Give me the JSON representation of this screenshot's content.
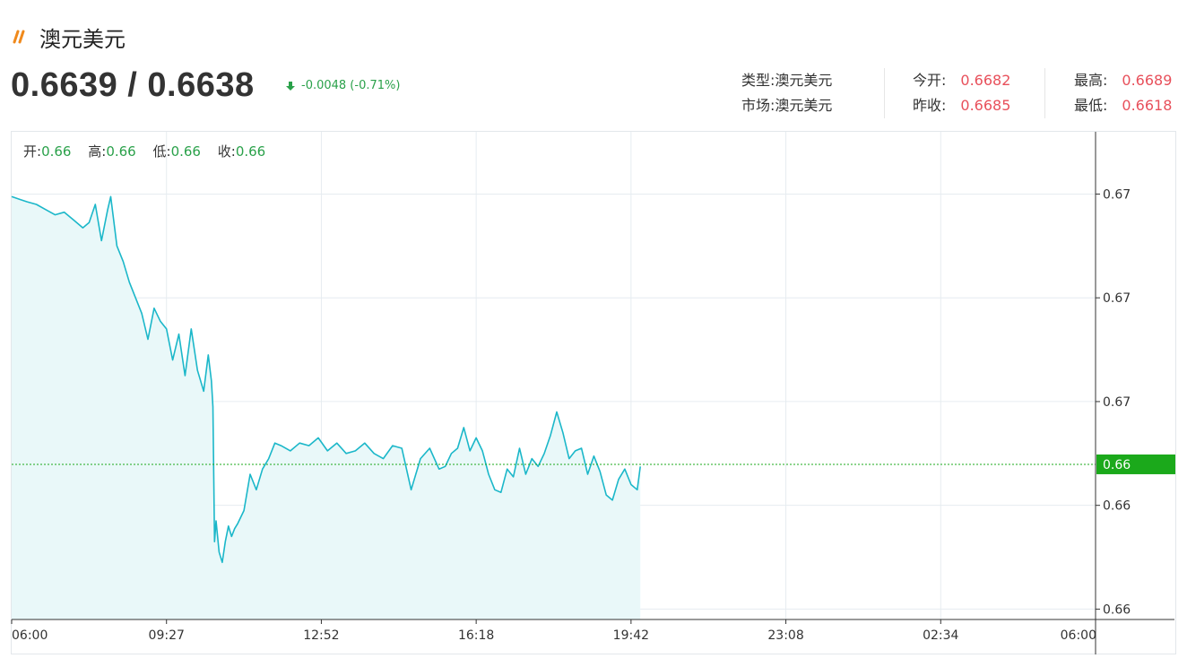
{
  "header": {
    "title": "澳元美元",
    "brand_icon": "double-slash-logo-icon",
    "brand_color": "#f08a1c"
  },
  "quote": {
    "bid_ask": "0.6639 / 0.6638",
    "change_text": "-0.0048 (-0.71%)",
    "direction_icon": "arrow-down-icon",
    "change_color": "#2aa14a"
  },
  "info": {
    "type_label": "类型:",
    "type_value": "澳元美元",
    "market_label": "市场:",
    "market_value": "澳元美元",
    "open_label": "今开:",
    "open_value": "0.6682",
    "prev_close_label": "昨收:",
    "prev_close_value": "0.6685",
    "high_label": "最高:",
    "high_value": "0.6689",
    "low_label": "最低:",
    "low_value": "0.6618",
    "value_color": "#e8505b"
  },
  "ohlc_bar": {
    "open_label": "开:",
    "open_value": "0.66",
    "high_label": "高:",
    "high_value": "0.66",
    "low_label": "低:",
    "low_value": "0.66",
    "close_label": "收:",
    "close_value": "0.66"
  },
  "chart_data": {
    "type": "area",
    "x_tick_labels": [
      "06:00",
      "09:27",
      "12:52",
      "16:18",
      "19:42",
      "23:08",
      "02:34",
      "06:00"
    ],
    "y_tick_labels": [
      "0.67",
      "0.67",
      "0.67",
      "0.66",
      "0.66"
    ],
    "y_tick_values": [
      0.6685,
      0.6665,
      0.6645,
      0.6625,
      0.6605
    ],
    "ylim": [
      0.6603,
      0.6697
    ],
    "current_price_label": "0.66",
    "current_price_value": 0.66329,
    "line_color": "#1bb7c9",
    "fill_color": "#e9f8f9",
    "current_line_color": "#1ba91b",
    "grid": true,
    "series": [
      {
        "x": [
          0,
          0.05,
          0.1,
          0.16,
          0.22,
          0.28,
          0.34,
          0.4,
          0.46,
          0.5,
          0.54,
          0.58,
          0.62,
          0.64,
          0.68,
          0.72,
          0.76,
          0.8,
          0.84,
          0.88,
          0.92,
          0.96,
          1.0,
          1.04,
          1.08,
          1.12,
          1.16,
          1.2,
          1.24,
          1.27,
          1.29,
          1.3,
          1.31,
          1.32,
          1.34,
          1.36,
          1.38,
          1.4,
          1.42,
          1.44,
          1.46,
          1.5,
          1.54,
          1.58,
          1.62,
          1.66,
          1.7,
          1.74,
          1.8,
          1.86,
          1.92,
          1.98,
          2.04,
          2.1,
          2.16,
          2.22,
          2.28,
          2.34,
          2.4,
          2.46,
          2.52,
          2.58,
          2.64,
          2.7,
          2.76,
          2.8,
          2.84,
          2.88,
          2.92,
          2.96,
          3.0,
          3.04,
          3.08,
          3.12,
          3.16,
          3.2,
          3.24,
          3.28,
          3.32,
          3.36,
          3.4,
          3.44,
          3.48,
          3.52,
          3.56,
          3.6,
          3.64,
          3.68,
          3.72,
          3.76,
          3.8,
          3.84,
          3.88,
          3.92,
          3.96,
          4.0,
          4.04,
          4.06
        ],
        "y": [
          0.66845,
          0.6684,
          0.66835,
          0.6683,
          0.6682,
          0.6681,
          0.66815,
          0.668,
          0.66785,
          0.66795,
          0.6683,
          0.6676,
          0.6682,
          0.66845,
          0.6675,
          0.6672,
          0.6668,
          0.6665,
          0.6662,
          0.6657,
          0.6663,
          0.66605,
          0.6659,
          0.6653,
          0.6658,
          0.665,
          0.6659,
          0.6651,
          0.6647,
          0.6654,
          0.6649,
          0.6644,
          0.6618,
          0.6622,
          0.6616,
          0.6614,
          0.6618,
          0.6621,
          0.6619,
          0.66205,
          0.66215,
          0.6624,
          0.6631,
          0.6628,
          0.6632,
          0.6634,
          0.6637,
          0.66365,
          0.66355,
          0.6637,
          0.66365,
          0.6638,
          0.66355,
          0.6637,
          0.6635,
          0.66355,
          0.6637,
          0.6635,
          0.6634,
          0.66365,
          0.6636,
          0.6628,
          0.6634,
          0.6636,
          0.6632,
          0.66325,
          0.6635,
          0.6636,
          0.664,
          0.66355,
          0.6638,
          0.66355,
          0.6631,
          0.6628,
          0.66275,
          0.6632,
          0.66305,
          0.6636,
          0.6631,
          0.6634,
          0.66325,
          0.6635,
          0.66385,
          0.6643,
          0.6639,
          0.6634,
          0.66355,
          0.6636,
          0.6631,
          0.66345,
          0.66315,
          0.6627,
          0.6626,
          0.663,
          0.6632,
          0.6629,
          0.6628,
          0.66325
        ]
      }
    ]
  }
}
